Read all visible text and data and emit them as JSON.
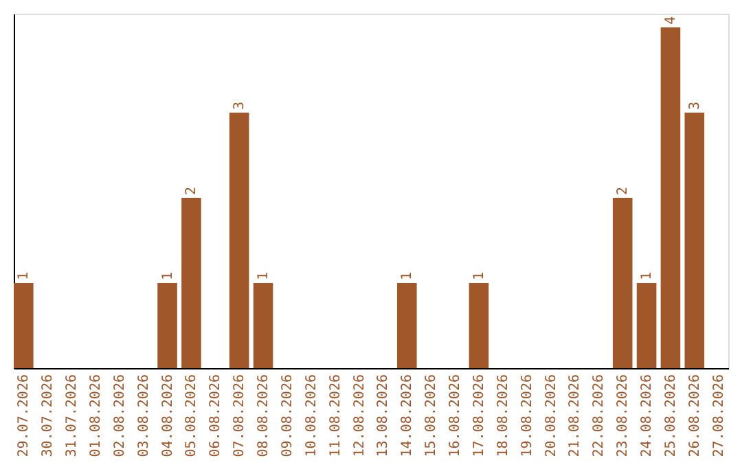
{
  "chart_data": {
    "type": "bar",
    "categories": [
      "29.07.2026",
      "30.07.2026",
      "31.07.2026",
      "01.08.2026",
      "02.08.2026",
      "03.08.2026",
      "04.08.2026",
      "05.08.2026",
      "06.08.2026",
      "07.08.2026",
      "08.08.2026",
      "09.08.2026",
      "10.08.2026",
      "11.08.2026",
      "12.08.2026",
      "13.08.2026",
      "14.08.2026",
      "15.08.2026",
      "16.08.2026",
      "17.08.2026",
      "18.08.2026",
      "19.08.2026",
      "20.08.2026",
      "21.08.2026",
      "22.08.2026",
      "23.08.2026",
      "24.08.2026",
      "25.08.2026",
      "26.08.2026",
      "27.08.2026"
    ],
    "values": [
      1,
      0,
      0,
      0,
      0,
      0,
      1,
      2,
      0,
      3,
      1,
      0,
      0,
      0,
      0,
      0,
      1,
      0,
      0,
      1,
      0,
      0,
      0,
      0,
      0,
      2,
      1,
      4,
      3,
      0
    ],
    "value_labels": [
      "1",
      null,
      null,
      null,
      null,
      null,
      "1",
      "2",
      null,
      "3",
      "1",
      null,
      null,
      null,
      null,
      null,
      "1",
      null,
      null,
      "1",
      null,
      null,
      null,
      null,
      null,
      "2",
      "1",
      "4",
      "3",
      null
    ],
    "color": "#a0572a",
    "ylim": [
      0,
      4.16
    ],
    "tick_labels": "x",
    "grid": false
  }
}
